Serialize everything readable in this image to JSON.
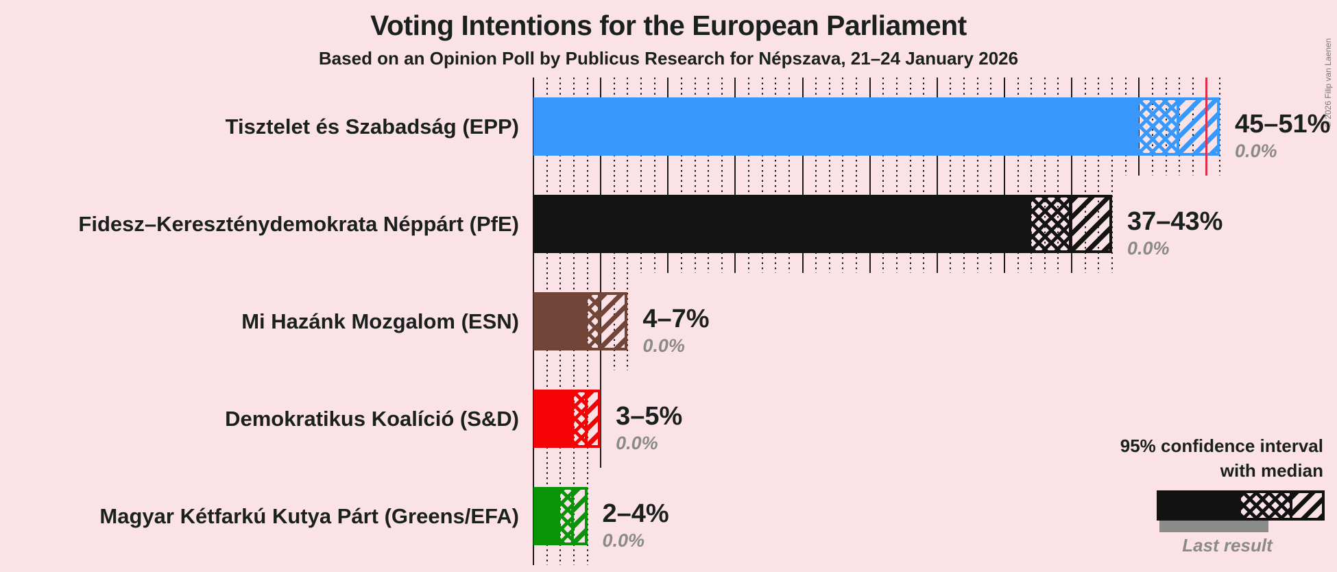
{
  "title": "Voting Intentions for the European Parliament",
  "subtitle": "Based on an Opinion Poll by Publicus Research for Népszava, 21–24 January 2026",
  "copyright": "© 2026 Filip van Laenen",
  "legend": {
    "line1": "95% confidence interval",
    "line2": "with median",
    "last_result": "Last result"
  },
  "colors": {
    "background": "#fbe2e7",
    "text_dark": "#1a201d",
    "text_gray": "#8a8a8a",
    "gridline": "#1a1a1a",
    "majority_line": "#dc2f4c",
    "last_result_bar": "#8b8b8b",
    "legend_sample": "#121212"
  },
  "chart_data": {
    "type": "bar",
    "orientation": "horizontal",
    "unit": "percent",
    "x_axis": {
      "min": 0,
      "max": 51,
      "major_gridline_step": 5,
      "minor_gridline_step": 1,
      "gridlines_labeled": false
    },
    "majority_line_percent": 50,
    "parties": [
      {
        "label": "Tisztelet és Szabadság (EPP)",
        "group": "EPP",
        "color": "#3998fc",
        "ci_low": 45,
        "median": 48,
        "ci_high": 51,
        "range_label": "45–51%",
        "last_result_label": "0.0%",
        "last_result": 0.0
      },
      {
        "label": "Fidesz–Kereszténydemokrata Néppárt (PfE)",
        "group": "PfE",
        "color": "#141414",
        "ci_low": 37,
        "median": 40,
        "ci_high": 43,
        "range_label": "37–43%",
        "last_result_label": "0.0%",
        "last_result": 0.0
      },
      {
        "label": "Mi Hazánk Mozgalom (ESN)",
        "group": "ESN",
        "color": "#714538",
        "ci_low": 4,
        "median": 5,
        "ci_high": 7,
        "range_label": "4–7%",
        "last_result_label": "0.0%",
        "last_result": 0.0
      },
      {
        "label": "Demokratikus Koalíció (S&D)",
        "group": "S&D",
        "color": "#f40204",
        "ci_low": 3,
        "median": 4,
        "ci_high": 5,
        "range_label": "3–5%",
        "last_result_label": "0.0%",
        "last_result": 0.0
      },
      {
        "label": "Magyar Kétfarkú Kutya Párt (Greens/EFA)",
        "group": "Greens/EFA",
        "color": "#0a9408",
        "ci_low": 2,
        "median": 3,
        "ci_high": 4,
        "range_label": "2–4%",
        "last_result_label": "0.0%",
        "last_result": 0.0
      }
    ]
  }
}
